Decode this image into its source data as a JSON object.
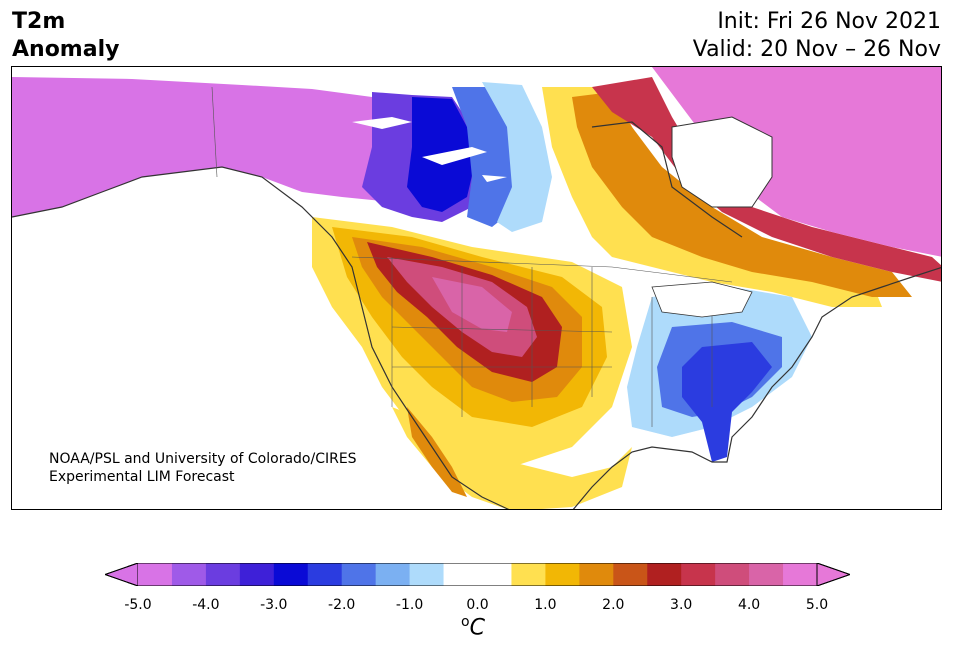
{
  "header": {
    "title_line1": "T2m",
    "title_line2": "Anomaly",
    "init_text": "Init: Fri 26 Nov 2021",
    "valid_text": "Valid: 20 Nov – 26 Nov"
  },
  "credit": {
    "line1": "NOAA/PSL and University of Colorado/CIRES",
    "line2": "Experimental LIM Forecast"
  },
  "colorbar": {
    "unit_label": "C",
    "unit_superscript": "o",
    "tick_labels": [
      "-5.0",
      "-4.0",
      "-3.0",
      "-2.0",
      "-1.0",
      "0.0",
      "1.0",
      "2.0",
      "3.0",
      "4.0",
      "5.0"
    ],
    "bin_colors": [
      "#d873e6",
      "#9f5ae8",
      "#6b3de0",
      "#3e20d8",
      "#0a0ad6",
      "#2b3ce0",
      "#4f74e8",
      "#7bb0f2",
      "#aedbfb",
      "#ffffff",
      "#ffffff",
      "#ffe050",
      "#f2b705",
      "#e08a0c",
      "#c95518",
      "#b02020",
      "#c7344c",
      "#cf4d7b",
      "#d964a8",
      "#e678d8"
    ],
    "under_color": "#d873e6",
    "over_color": "#e678d8"
  },
  "map": {
    "region": "North America",
    "regions": [
      {
        "name": "Alaska / Northwest Canada",
        "anomaly_c": -5.0
      },
      {
        "name": "Central Canada",
        "anomaly_c": -3.0
      },
      {
        "name": "Great Basin / Rockies",
        "anomaly_c": 4.0
      },
      {
        "name": "Southeast US / Florida",
        "anomaly_c": -2.0
      },
      {
        "name": "Eastern Canada / Labrador",
        "anomaly_c": 4.5
      }
    ]
  }
}
